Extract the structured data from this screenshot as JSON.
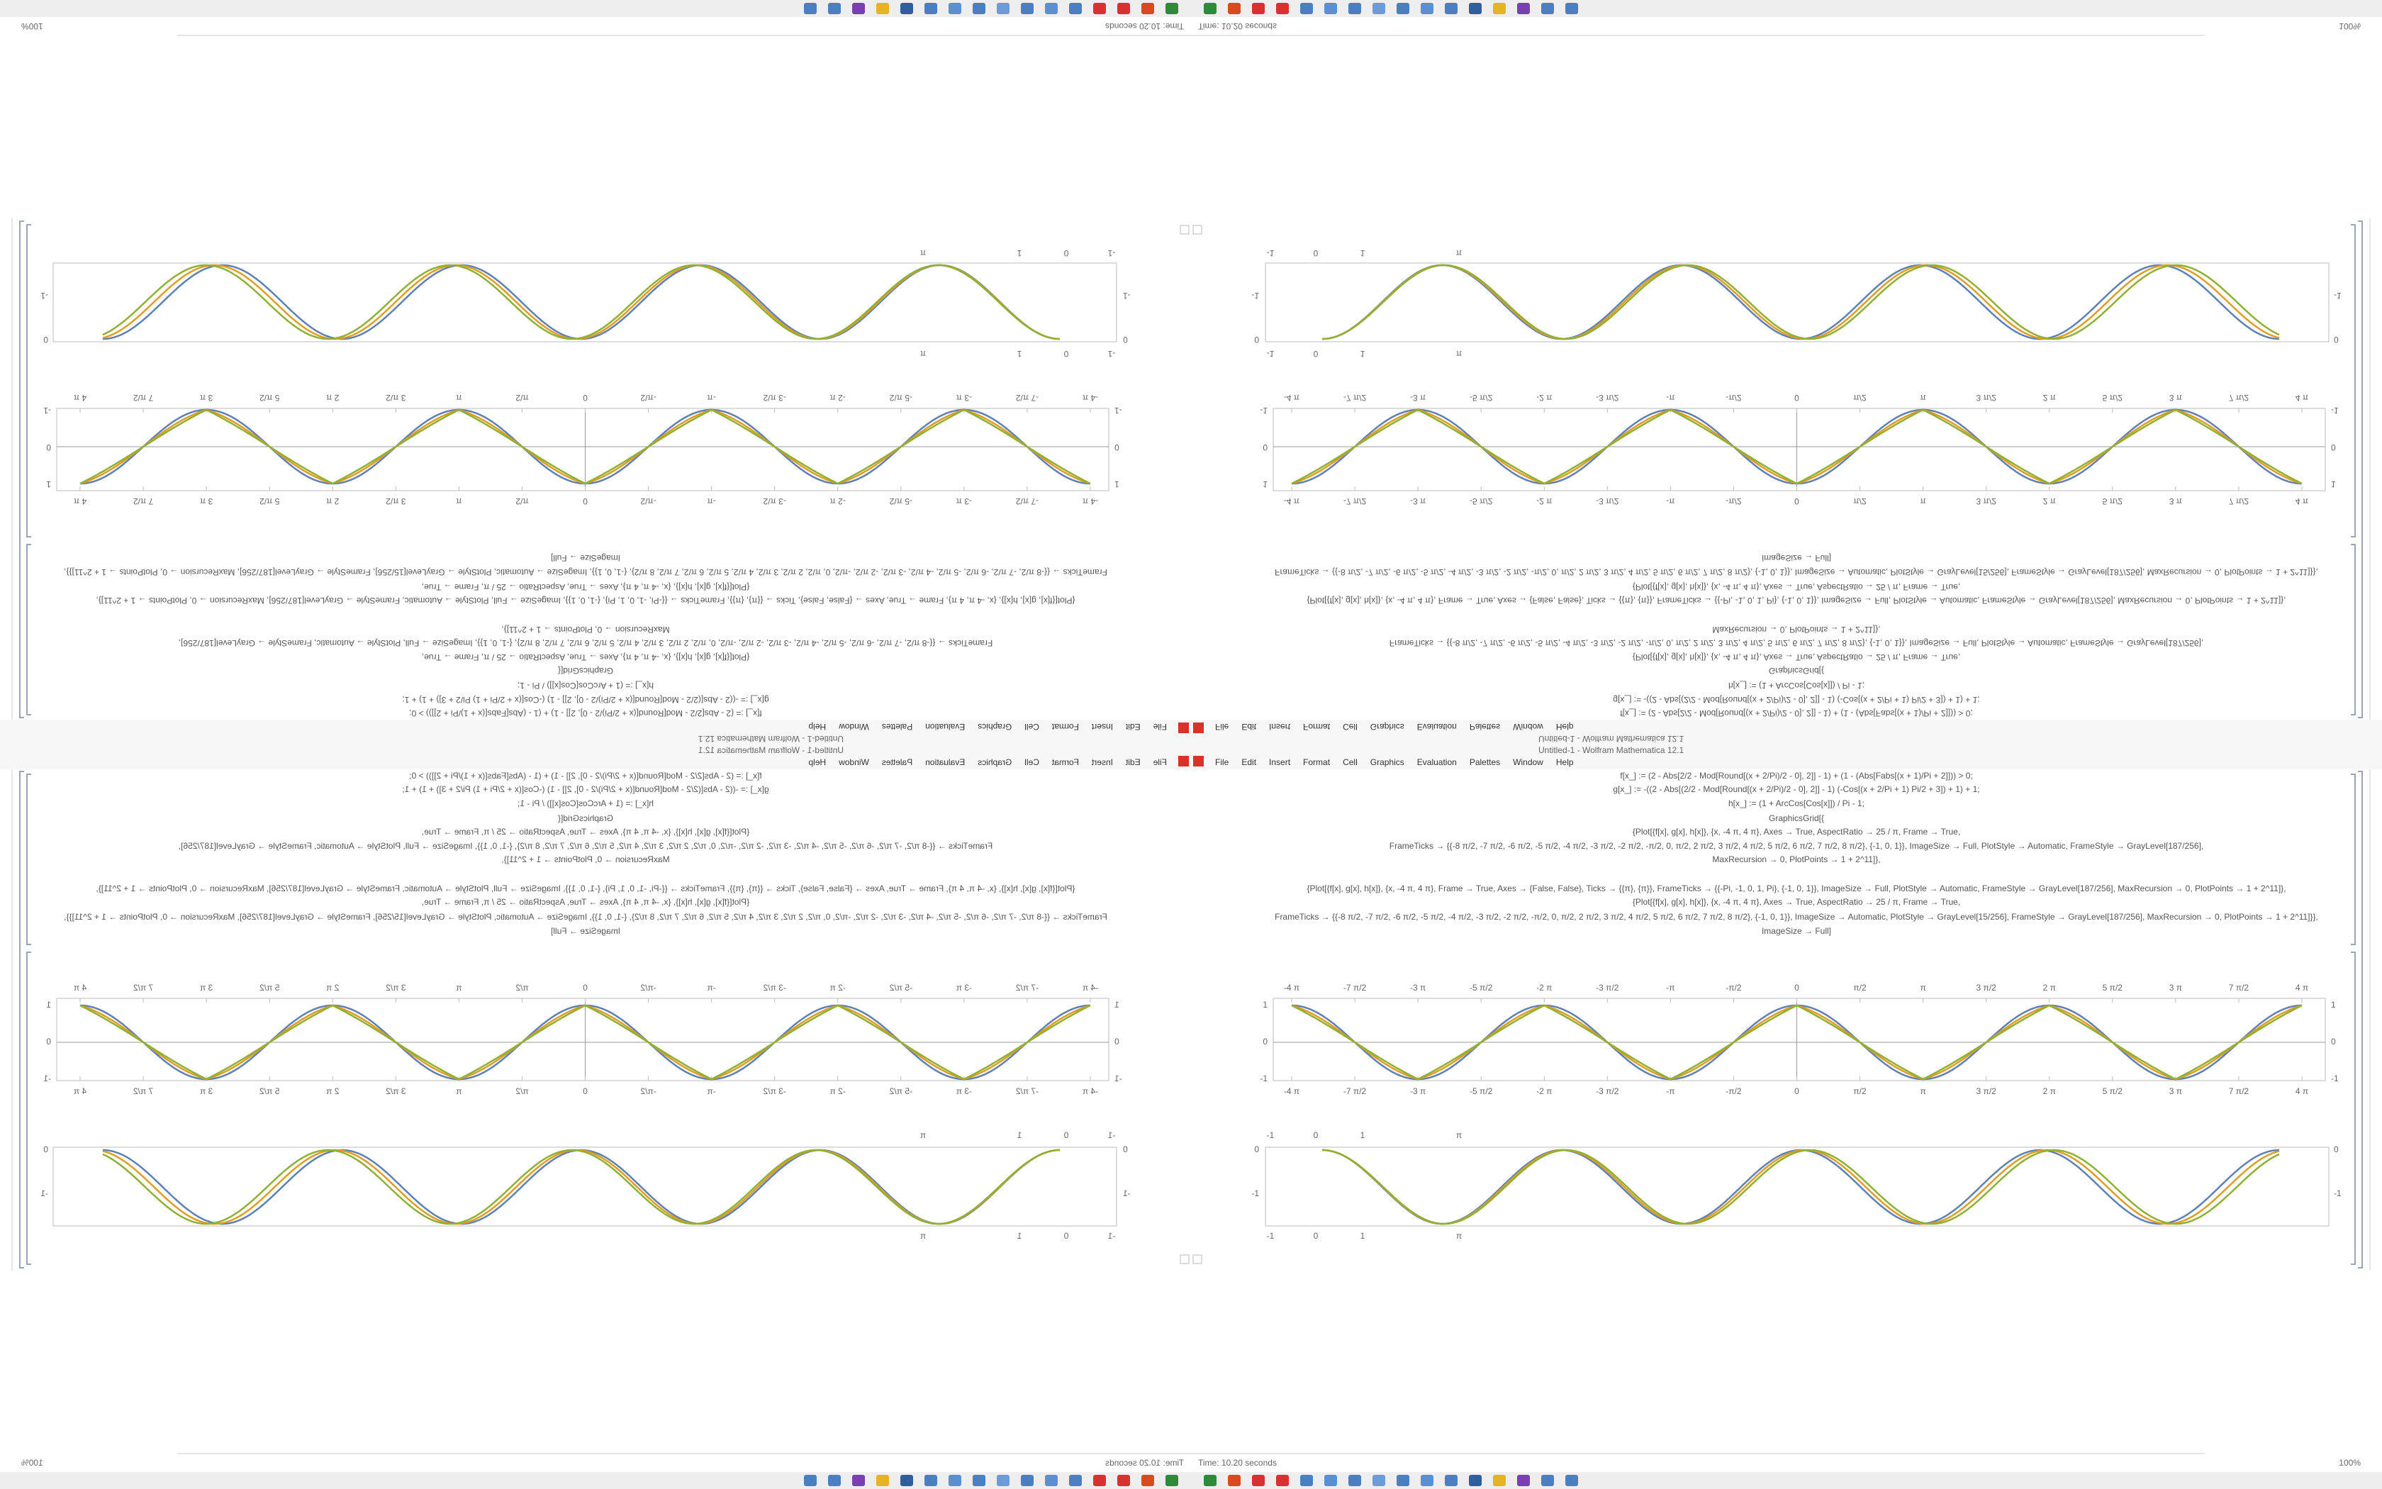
{
  "window": {
    "title": "Untitled-1 - Wolfram Mathematica 12.1",
    "menu": [
      "File",
      "Edit",
      "Insert",
      "Format",
      "Cell",
      "Graphics",
      "Evaluation",
      "Palettes",
      "Window",
      "Help"
    ]
  },
  "notebook": {
    "code_lines": [
      "f[x_] := (2 - Abs[2/2 - Mod[Round[(x + 2/Pi)/2 - 0], 2]] - 1) + (1 - (Abs[Fabs[(x + 1)/Pi + 2]])) > 0;",
      "g[x_] := -((2 - Abs[(2/2 - Mod[Round[(x + 2/Pi)/2 - 0], 2]] - 1) (-Cos[(x + 2/Pi + 1) Pi/2 + 3]) + 1) + 1;",
      "h[x_] := (1 + ArcCos[Cos[x]]) / Pi - 1;",
      "GraphicsGrid[{",
      "{Plot[{f[x], g[x], h[x]}, {x, -4 π, 4 π}, Axes → True, AspectRatio → 25 / π, Frame → True,",
      "FrameTicks → {{-8 π/2, -7 π/2, -6 π/2, -5 π/2, -4 π/2, -3 π/2, -2 π/2, -π/2, 0, π/2, 2 π/2, 3 π/2, 4 π/2, 5 π/2, 6 π/2, 7 π/2, 8 π/2}, {-1, 0, 1}}, ImageSize → Full, PlotStyle → Automatic, FrameStyle → GrayLevel[187/256],",
      "MaxRecursion → 0, PlotPoints → 1 + 2^11]},",
      "{Plot[{f[x], g[x], h[x]}, {x, -4 π, 4 π}, Frame → True, Axes → {False, False}, Ticks → {{π}, {π}}, FrameTicks → {{-Pi, -1, 0, 1, Pi}, {-1, 0, 1}}, ImageSize → Full, PlotStyle → Automatic, FrameStyle → GrayLevel[187/256], MaxRecursion → 0, PlotPoints → 1 + 2^11]},",
      "{Plot[{f[x], g[x], h[x]}, {x, -4 π, 4 π}, Axes → True, AspectRatio → 25 / π, Frame → True,",
      "FrameTicks → {{-8 π/2, -7 π/2, -6 π/2, -5 π/2, -4 π/2, -3 π/2, -2 π/2, -π/2, 0, π/2, 2 π/2, 3 π/2, 4 π/2, 5 π/2, 6 π/2, 7 π/2, 8 π/2}, {-1, 0, 1}}, ImageSize → Automatic, PlotStyle → GrayLevel[15/256], FrameStyle → GrayLevel[187/256], MaxRecursion → 0, PlotPoints → 1 + 2^11]}},",
      "ImageSize → Full]"
    ],
    "plot1": {
      "x_tick_labels": [
        "-4 π",
        "-7 π/2",
        "-3 π",
        "-5 π/2",
        "-2 π",
        "-3 π/2",
        "-π",
        "-π/2",
        "0",
        "π/2",
        "π",
        "3 π/2",
        "2 π",
        "5 π/2",
        "3 π",
        "7 π/2",
        "4 π"
      ],
      "y_tick_labels": [
        "1",
        "0",
        "-1"
      ]
    },
    "plot2": {
      "x_tick_labels": [
        "-1",
        "0",
        "1",
        "π"
      ],
      "y_tick_labels": [
        "0",
        "-1"
      ]
    }
  },
  "status_bar": {
    "timing": "Time: 10.20 seconds",
    "zoom": "100%"
  }
}
